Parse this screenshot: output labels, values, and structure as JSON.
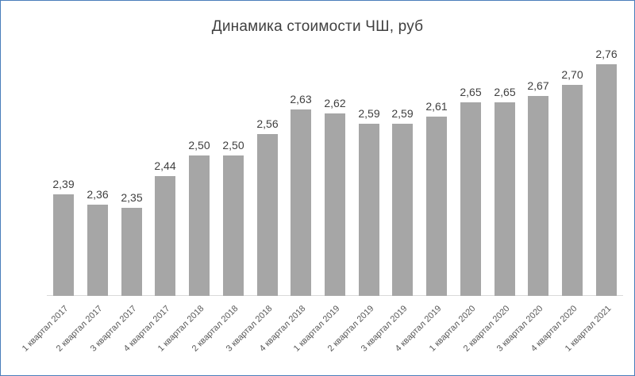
{
  "chart": {
    "border_color": "#4a7ebb",
    "background_color": "#ffffff"
  },
  "chart_data": {
    "type": "bar",
    "title": "Динамика стоимости ЧШ, руб",
    "categories": [
      "1 квартал 2017",
      "2 квартал 2017",
      "3 квартал 2017",
      "4 квартал 2017",
      "1 квартал 2018",
      "2 квартал 2018",
      "3 квартал 2018",
      "4 квартал 2018",
      "1 квартал 2019",
      "2 квартал 2019",
      "3 квартал 2019",
      "4 квартал 2019",
      "1 квартал 2020",
      "2 квартал 2020",
      "3 квартал 2020",
      "4 квартал 2020",
      "1 квартал 2021"
    ],
    "values": [
      2.39,
      2.36,
      2.35,
      2.44,
      2.5,
      2.5,
      2.56,
      2.63,
      2.62,
      2.59,
      2.59,
      2.61,
      2.65,
      2.65,
      2.67,
      2.7,
      2.76
    ],
    "labels": [
      "2,39",
      "2,36",
      "2,35",
      "2,44",
      "2,50",
      "2,50",
      "2,56",
      "2,63",
      "2,62",
      "2,59",
      "2,59",
      "2,61",
      "2,65",
      "2,65",
      "2,67",
      "2,70",
      "2,76"
    ],
    "xlabel": "",
    "ylabel": "",
    "ylim": [
      2.1,
      2.8
    ],
    "grid": false,
    "legend": "none",
    "bar_color": "#a6a6a6",
    "value_label_color": "#404040",
    "axis_label_color": "#595959",
    "axis_line_color": "#d9d9d9",
    "title_color": "#404040"
  }
}
